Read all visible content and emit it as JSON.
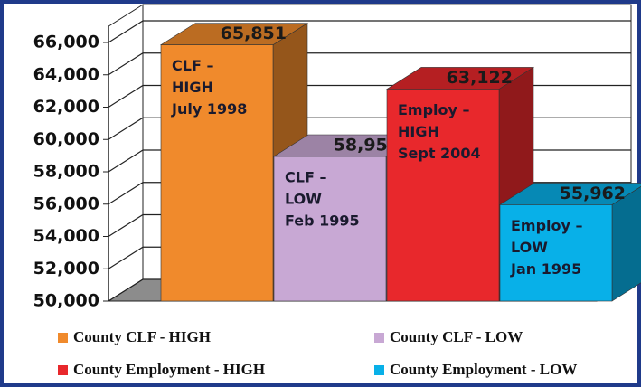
{
  "chart_data": {
    "type": "bar3d",
    "ylim": [
      50000,
      67000
    ],
    "yticks": [
      {
        "value": 50000,
        "label": "50,000"
      },
      {
        "value": 52000,
        "label": "52,000"
      },
      {
        "value": 54000,
        "label": "54,000"
      },
      {
        "value": 56000,
        "label": "56,000"
      },
      {
        "value": 58000,
        "label": "58,000"
      },
      {
        "value": 60000,
        "label": "60,000"
      },
      {
        "value": 62000,
        "label": "62,000"
      },
      {
        "value": 64000,
        "label": "64,000"
      },
      {
        "value": 66000,
        "label": "66,000"
      }
    ],
    "grid": true,
    "legend": "bottom",
    "series": [
      {
        "name": "County CLF - HIGH",
        "color": "#f08a2c",
        "values": [
          65851
        ],
        "value_labels": [
          "65,851"
        ],
        "annotation": [
          "CLF –",
          "HIGH",
          "July 1998"
        ]
      },
      {
        "name": "County CLF - LOW",
        "color": "#c8a8d4",
        "values": [
          58951
        ],
        "value_labels": [
          "58,951"
        ],
        "annotation": [
          "CLF –",
          "LOW",
          "Feb 1995"
        ]
      },
      {
        "name": "County Employment - HIGH",
        "color": "#e8282c",
        "values": [
          63122
        ],
        "value_labels": [
          "63,122"
        ],
        "annotation": [
          "Employ –",
          "HIGH",
          "Sept 2004"
        ]
      },
      {
        "name": "County Employment - LOW",
        "color": "#08b0e8",
        "values": [
          55962
        ],
        "value_labels": [
          "55,962"
        ],
        "annotation": [
          "Employ –",
          "LOW",
          "Jan 1995"
        ]
      }
    ]
  }
}
